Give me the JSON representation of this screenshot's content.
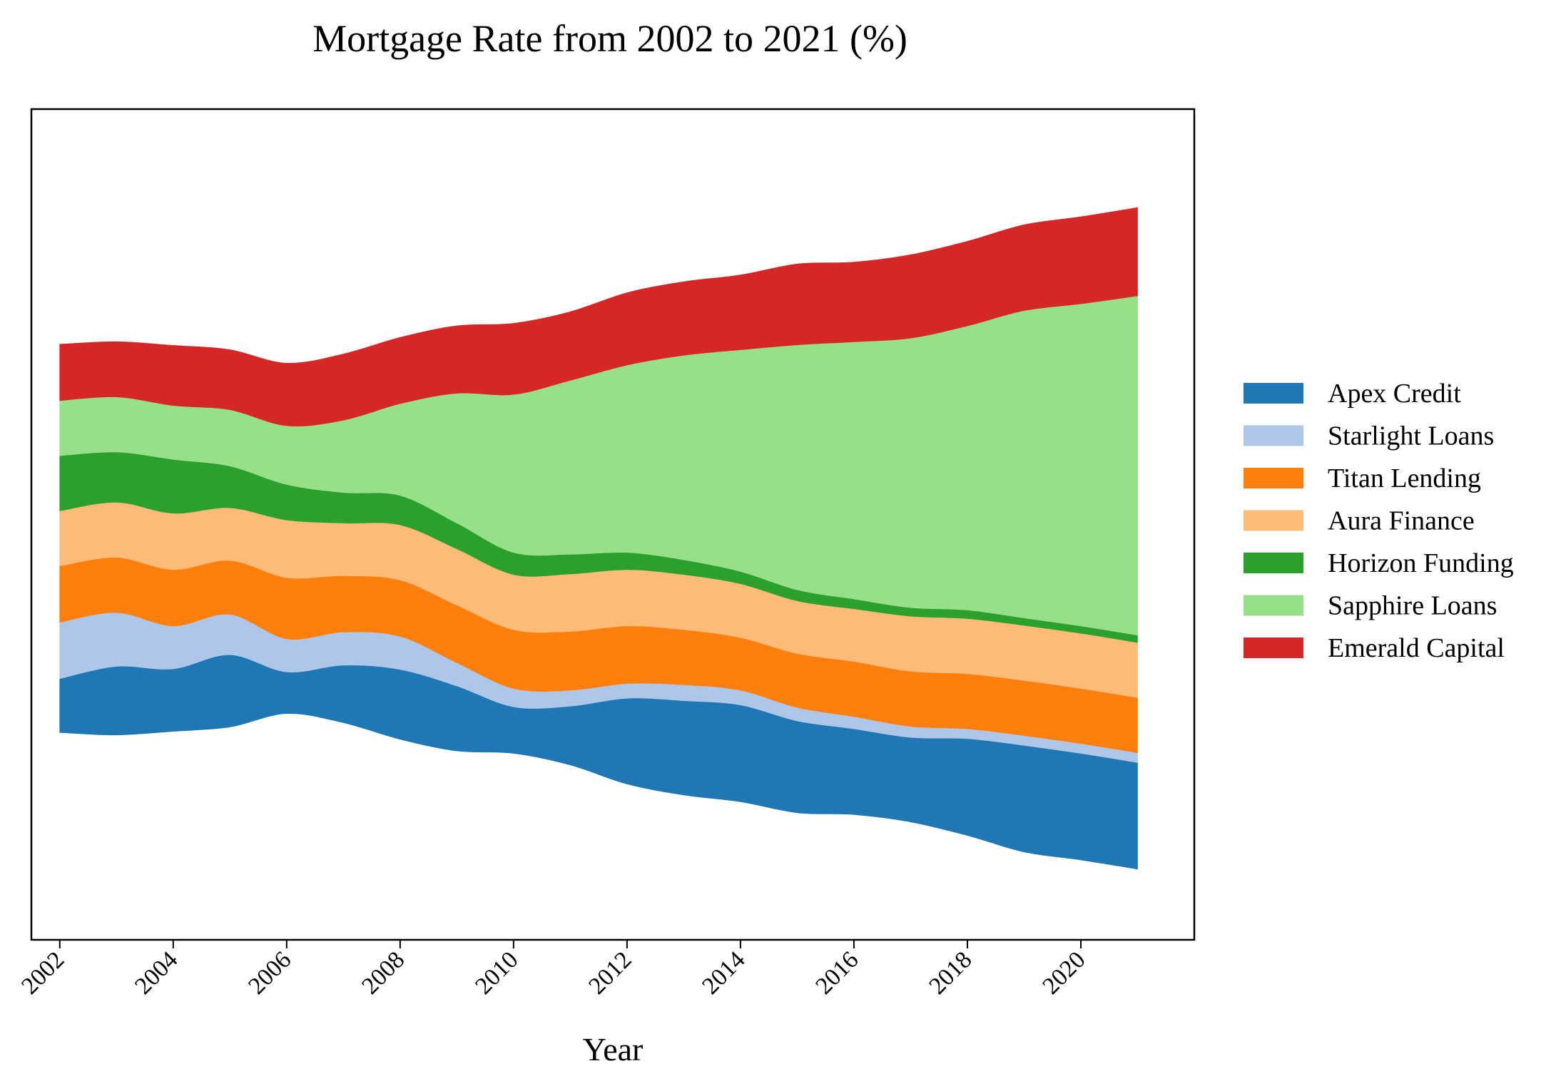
{
  "chart_data": {
    "type": "area",
    "subtype": "streamgraph",
    "title": "Mortgage Rate from 2002 to 2021 (%)",
    "xlabel": "Year",
    "ylabel": "",
    "x": [
      2002,
      2003,
      2004,
      2005,
      2006,
      2007,
      2008,
      2009,
      2010,
      2011,
      2012,
      2013,
      2014,
      2015,
      2016,
      2017,
      2018,
      2019,
      2020,
      2021
    ],
    "x_ticks": [
      "2002",
      "2004",
      "2006",
      "2008",
      "2010",
      "2012",
      "2014",
      "2016",
      "2018",
      "2020"
    ],
    "xlim": [
      2001.5,
      2022.0
    ],
    "y_ticks_visible": false,
    "grid": false,
    "legend_position": "right",
    "series": [
      {
        "name": "Apex Credit",
        "color": "#1f77b4",
        "values": [
          4.4,
          5.6,
          5.1,
          5.9,
          3.4,
          4.7,
          5.7,
          5.3,
          3.8,
          4.8,
          7.0,
          7.7,
          7.9,
          7.5,
          7.0,
          6.9,
          7.9,
          8.7,
          8.7,
          8.7
        ]
      },
      {
        "name": "Starlight Loans",
        "color": "#aec7e8",
        "values": [
          4.6,
          4.4,
          3.5,
          3.3,
          2.7,
          2.7,
          2.7,
          1.9,
          1.5,
          1.3,
          1.2,
          1.3,
          1.2,
          1.1,
          1.0,
          0.9,
          0.8,
          0.8,
          0.8,
          0.8
        ]
      },
      {
        "name": "Titan Lending",
        "color": "#ff7f0e",
        "values": [
          4.6,
          4.5,
          4.6,
          4.4,
          5.0,
          4.6,
          4.6,
          4.7,
          4.8,
          4.8,
          4.7,
          4.5,
          4.3,
          4.4,
          4.5,
          4.5,
          4.5,
          4.5,
          4.5,
          4.5
        ]
      },
      {
        "name": "Aura Finance",
        "color": "#ffbb78",
        "values": [
          4.5,
          4.5,
          4.6,
          4.3,
          4.7,
          4.3,
          4.5,
          4.6,
          4.5,
          4.7,
          4.6,
          4.5,
          4.4,
          4.3,
          4.3,
          4.5,
          4.5,
          4.5,
          4.5,
          4.5
        ]
      },
      {
        "name": "Horizon Funding",
        "color": "#2ca02c",
        "values": [
          4.5,
          4.1,
          4.4,
          3.4,
          2.9,
          2.5,
          2.4,
          2.1,
          1.8,
          1.6,
          1.4,
          1.2,
          1.0,
          0.9,
          0.8,
          0.7,
          0.7,
          0.6,
          0.6,
          0.6
        ]
      },
      {
        "name": "Sapphire Loans",
        "color": "#98df8a",
        "values": [
          4.5,
          4.5,
          4.4,
          4.6,
          4.8,
          5.9,
          7.5,
          10.6,
          12.9,
          14.2,
          15.3,
          16.7,
          18.1,
          20.0,
          21.0,
          22.0,
          23.2,
          25.1,
          26.3,
          27.7
        ]
      },
      {
        "name": "Emerald Capital",
        "color": "#d62728",
        "values": [
          4.6,
          4.5,
          4.9,
          4.9,
          5.1,
          5.4,
          5.4,
          5.5,
          5.8,
          5.6,
          5.9,
          6.0,
          6.1,
          6.6,
          6.5,
          6.8,
          6.9,
          7.0,
          7.1,
          7.2
        ]
      }
    ]
  }
}
